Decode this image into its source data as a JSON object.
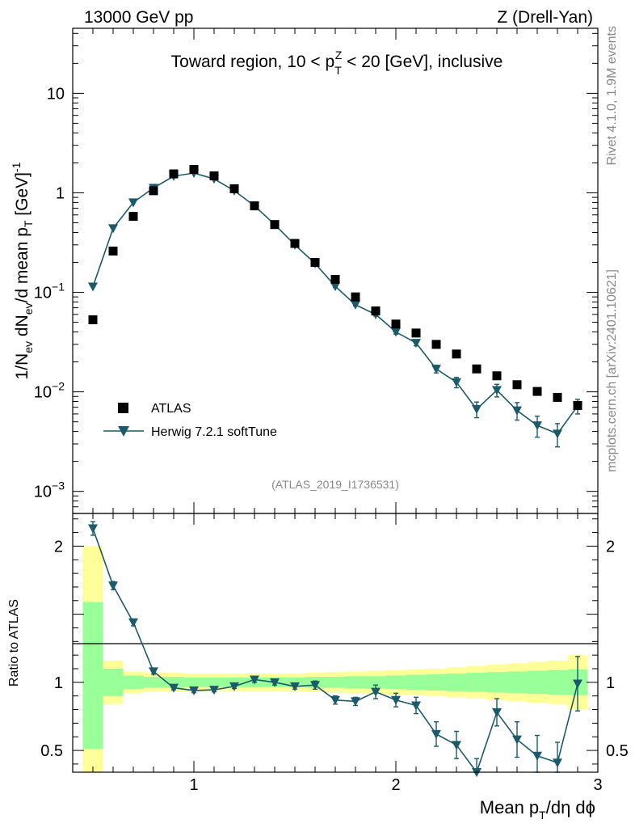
{
  "header": {
    "left": "13000 GeV pp",
    "right": "Z (Drell-Yan)"
  },
  "side_labels": {
    "rivet": "Rivet 4.1.0,  1.9M events",
    "mcplots": "mcplots.cern.ch [arXiv:2401.10621]"
  },
  "colors": {
    "mc": "#1a5a6a",
    "data": "#000000",
    "band_inner": "#99ff99",
    "band_outer": "#ffff99"
  },
  "chart_data": [
    {
      "type": "scatter",
      "title": "Toward region, 10 < p_T^Z < 20 [GeV], inclusive",
      "ylabel": "1/N_ev dN_ev/d mean p_T [GeV]^-1",
      "yscale": "log",
      "ylim": [
        0.0006,
        45
      ],
      "xlim": [
        0.4,
        3.0
      ],
      "ytick_labels": [
        {
          "value": 10,
          "mant": "10",
          "exp": ""
        },
        {
          "value": 1,
          "mant": "1",
          "exp": ""
        },
        {
          "value": 0.1,
          "mant": "10",
          "exp": "−1"
        },
        {
          "value": 0.01,
          "mant": "10",
          "exp": "−2"
        },
        {
          "value": 0.001,
          "mant": "10",
          "exp": "−3"
        }
      ],
      "analysis_id": "(ATLAS_2019_I1736531)",
      "legend": [
        {
          "name": "ATLAS",
          "marker": "square"
        },
        {
          "name": "Herwig 7.2.1 softTune",
          "marker": "triangle-down-line"
        }
      ],
      "series": [
        {
          "name": "ATLAS",
          "x": [
            0.5,
            0.6,
            0.7,
            0.8,
            0.9,
            1.0,
            1.1,
            1.2,
            1.3,
            1.4,
            1.5,
            1.6,
            1.7,
            1.8,
            1.9,
            2.0,
            2.1,
            2.2,
            2.3,
            2.4,
            2.5,
            2.6,
            2.7,
            2.8,
            2.9
          ],
          "y": [
            0.053,
            0.26,
            0.58,
            1.05,
            1.55,
            1.72,
            1.48,
            1.1,
            0.74,
            0.48,
            0.31,
            0.2,
            0.135,
            0.09,
            0.065,
            0.048,
            0.039,
            0.03,
            0.024,
            0.017,
            0.0145,
            0.0118,
            0.0101,
            0.0088,
            0.0073
          ]
        },
        {
          "name": "Herwig 7.2.1 softTune",
          "x": [
            0.5,
            0.6,
            0.7,
            0.8,
            0.9,
            1.0,
            1.1,
            1.2,
            1.3,
            1.4,
            1.5,
            1.6,
            1.7,
            1.8,
            1.9,
            2.0,
            2.1,
            2.2,
            2.3,
            2.4,
            2.5,
            2.6,
            2.7,
            2.8,
            2.9
          ],
          "y": [
            0.114,
            0.44,
            0.8,
            1.12,
            1.47,
            1.58,
            1.38,
            1.05,
            0.74,
            0.48,
            0.3,
            0.195,
            0.115,
            0.075,
            0.06,
            0.04,
            0.031,
            0.017,
            0.0125,
            0.0067,
            0.0104,
            0.0065,
            0.0046,
            0.0038,
            0.0072
          ],
          "yerr": [
            0.002,
            0.006,
            0.01,
            0.015,
            0.02,
            0.02,
            0.02,
            0.015,
            0.01,
            0.008,
            0.005,
            0.004,
            0.003,
            0.002,
            0.002,
            0.002,
            0.002,
            0.0015,
            0.0015,
            0.0012,
            0.0015,
            0.0013,
            0.0011,
            0.001,
            0.0012
          ]
        }
      ]
    },
    {
      "type": "line",
      "ylabel": "Ratio to ATLAS",
      "xlabel": "Mean p_T/dη dϕ",
      "xlim": [
        0.4,
        3.0
      ],
      "ylim": [
        0.34,
        2.24
      ],
      "xtick_labels": [
        "1",
        "2",
        "3"
      ],
      "ytick_labels": [
        "2",
        "1",
        "0.5"
      ],
      "bands": {
        "edges": [
          0.45,
          0.55,
          0.65,
          0.75,
          0.85,
          0.95,
          1.05,
          1.15,
          1.25,
          1.35,
          1.45,
          1.55,
          1.65,
          1.75,
          1.85,
          1.95,
          2.05,
          2.15,
          2.25,
          2.35,
          2.45,
          2.55,
          2.65,
          2.75,
          2.85,
          2.95
        ],
        "inner_lo": [
          0.51,
          0.9,
          0.95,
          0.96,
          0.96,
          0.965,
          0.965,
          0.965,
          0.965,
          0.965,
          0.965,
          0.96,
          0.96,
          0.955,
          0.955,
          0.95,
          0.945,
          0.94,
          0.935,
          0.93,
          0.925,
          0.92,
          0.915,
          0.91,
          0.905
        ],
        "inner_hi": [
          1.59,
          1.1,
          1.05,
          1.04,
          1.04,
          1.035,
          1.035,
          1.035,
          1.035,
          1.035,
          1.035,
          1.04,
          1.04,
          1.045,
          1.045,
          1.05,
          1.055,
          1.06,
          1.065,
          1.07,
          1.075,
          1.08,
          1.085,
          1.09,
          1.095
        ],
        "outer_lo": [
          0.3,
          0.84,
          0.92,
          0.93,
          0.93,
          0.935,
          0.935,
          0.935,
          0.935,
          0.935,
          0.935,
          0.93,
          0.925,
          0.92,
          0.915,
          0.91,
          0.905,
          0.9,
          0.89,
          0.88,
          0.87,
          0.86,
          0.85,
          0.84,
          0.8
        ],
        "outer_hi": [
          2.0,
          1.16,
          1.08,
          1.07,
          1.07,
          1.065,
          1.065,
          1.065,
          1.065,
          1.065,
          1.065,
          1.07,
          1.075,
          1.08,
          1.085,
          1.09,
          1.095,
          1.1,
          1.11,
          1.12,
          1.13,
          1.14,
          1.15,
          1.16,
          1.2
        ]
      },
      "series": [
        {
          "name": "Herwig 7.2.1 softTune / ATLAS",
          "x": [
            0.5,
            0.6,
            0.7,
            0.8,
            0.9,
            1.0,
            1.1,
            1.2,
            1.3,
            1.4,
            1.5,
            1.6,
            1.7,
            1.8,
            1.9,
            2.0,
            2.1,
            2.2,
            2.3,
            2.4,
            2.5,
            2.6,
            2.7,
            2.8,
            2.9
          ],
          "y": [
            2.13,
            1.71,
            1.44,
            1.08,
            0.96,
            0.94,
            0.945,
            0.97,
            1.02,
            1.0,
            0.97,
            0.98,
            0.87,
            0.86,
            0.93,
            0.87,
            0.83,
            0.62,
            0.54,
            0.32,
            0.78,
            0.58,
            0.46,
            0.41,
            0.99
          ],
          "yerr": [
            0.05,
            0.03,
            0.025,
            0.02,
            0.015,
            0.015,
            0.015,
            0.015,
            0.02,
            0.02,
            0.02,
            0.03,
            0.03,
            0.03,
            0.05,
            0.05,
            0.06,
            0.09,
            0.1,
            0.12,
            0.1,
            0.13,
            0.15,
            0.15,
            0.2
          ]
        }
      ]
    }
  ]
}
